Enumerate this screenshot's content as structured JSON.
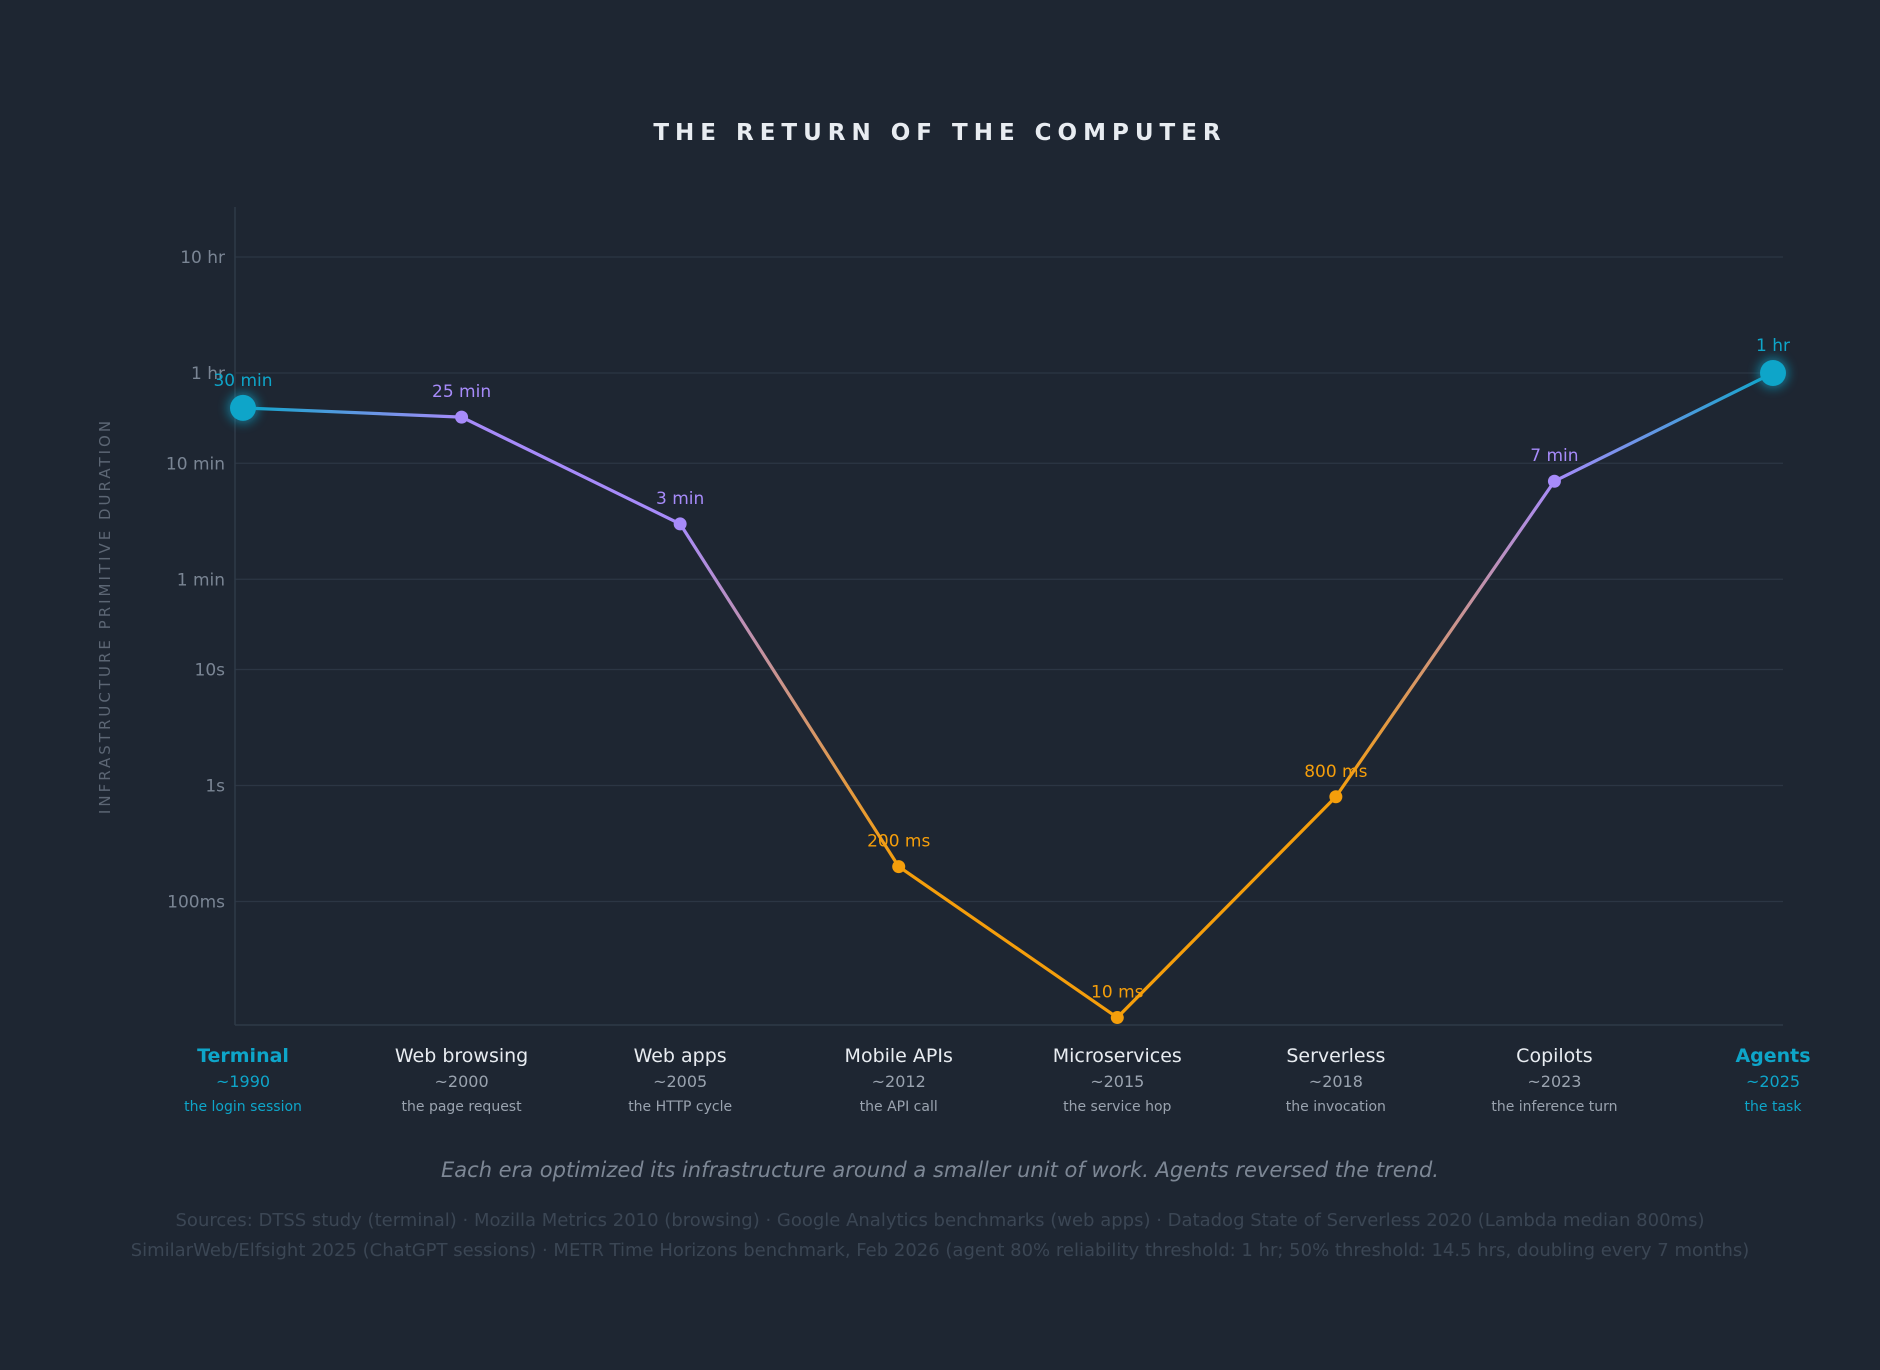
{
  "chart_data": {
    "type": "line",
    "title": "THE RETURN OF THE COMPUTER",
    "ylabel": "INFRASTRUCTURE PRIMITIVE DURATION",
    "y_scale": "log",
    "y_unit": "seconds",
    "ylim": [
      0.008,
      100000
    ],
    "y_ticks": [
      {
        "label": "10 hr",
        "value": 36000
      },
      {
        "label": "1 hr",
        "value": 3600
      },
      {
        "label": "10 min",
        "value": 600
      },
      {
        "label": "1 min",
        "value": 60
      },
      {
        "label": "10s",
        "value": 10
      },
      {
        "label": "1s",
        "value": 1
      },
      {
        "label": "100ms",
        "value": 0.1
      }
    ],
    "points": [
      {
        "name": "Terminal",
        "year": "~1990",
        "desc": "the login session",
        "value": 1800,
        "label": "30 min",
        "color": "#0ea5c9",
        "highlight": true
      },
      {
        "name": "Web browsing",
        "year": "~2000",
        "desc": "the page request",
        "value": 1500,
        "label": "25 min",
        "color": "#a78bfa",
        "highlight": false
      },
      {
        "name": "Web apps",
        "year": "~2005",
        "desc": "the HTTP cycle",
        "value": 180,
        "label": "3 min",
        "color": "#a78bfa",
        "highlight": false
      },
      {
        "name": "Mobile APIs",
        "year": "~2012",
        "desc": "the API call",
        "value": 0.2,
        "label": "200 ms",
        "color": "#f59e0b",
        "highlight": false
      },
      {
        "name": "Microservices",
        "year": "~2015",
        "desc": "the service hop",
        "value": 0.01,
        "label": "10 ms",
        "color": "#f59e0b",
        "highlight": false
      },
      {
        "name": "Serverless",
        "year": "~2018",
        "desc": "the invocation",
        "value": 0.8,
        "label": "800 ms",
        "color": "#f59e0b",
        "highlight": false
      },
      {
        "name": "Copilots",
        "year": "~2023",
        "desc": "the inference turn",
        "value": 420,
        "label": "7 min",
        "color": "#a78bfa",
        "highlight": false
      },
      {
        "name": "Agents",
        "year": "~2025",
        "desc": "the task",
        "value": 3600,
        "label": "1 hr",
        "color": "#0ea5c9",
        "highlight": true
      }
    ],
    "grid": true,
    "legend": "none"
  },
  "subtitle": "Each era optimized its infrastructure around a smaller unit of work. Agents reversed the trend.",
  "sources": [
    "Sources: DTSS study (terminal) · Mozilla Metrics 2010 (browsing) · Google Analytics benchmarks (web apps) · Datadog State of Serverless 2020 (Lambda median 800ms)",
    "SimilarWeb/Elfsight 2025 (ChatGPT sessions) · METR Time Horizons benchmark, Feb 2026 (agent 80% reliability threshold: 1 hr; 50% threshold: 14.5 hrs, doubling every 7 months)"
  ],
  "colors": {
    "background": "#1e2632",
    "grid": "#2c3644",
    "axis_text": "#7a8594",
    "category_text": "#e8ecf1",
    "year_text": "#9aa3af",
    "desc_text": "#9aa3af",
    "accent_cyan": "#0ea5c9",
    "violet": "#a78bfa",
    "amber": "#f59e0b"
  }
}
